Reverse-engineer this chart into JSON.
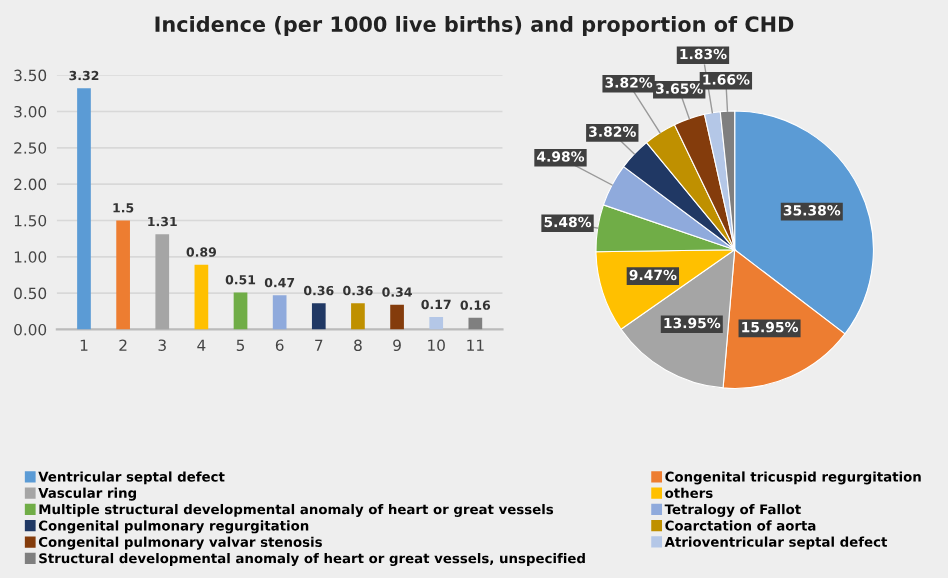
{
  "chart_data": [
    {
      "type": "bar",
      "title": "Incidence (per 1000 live births) and proportion of CHD",
      "categories": [
        "1",
        "2",
        "3",
        "4",
        "5",
        "6",
        "7",
        "8",
        "9",
        "10",
        "11"
      ],
      "values": [
        3.32,
        1.5,
        1.31,
        0.89,
        0.51,
        0.47,
        0.36,
        0.36,
        0.34,
        0.17,
        0.16
      ],
      "colors": [
        "#5b9bd5",
        "#ed7d31",
        "#a5a5a5",
        "#ffc000",
        "#70ad47",
        "#8faadc",
        "#203864",
        "#bf9000",
        "#843c0c",
        "#b4c7e7",
        "#7f7f7f"
      ],
      "ylim": [
        0,
        3.5
      ],
      "yticks": [
        {
          "value": 0,
          "label": "0.00"
        },
        {
          "value": 0.5,
          "label": "0.50"
        },
        {
          "value": 1,
          "label": "1.00"
        },
        {
          "value": 1.5,
          "label": "1.50"
        },
        {
          "value": 2,
          "label": "2.00"
        },
        {
          "value": 2.5,
          "label": "2.50"
        },
        {
          "value": 3,
          "label": "3.00"
        },
        {
          "value": 3.5,
          "label": "3.50"
        }
      ],
      "grid": "y",
      "data_labels": true
    },
    {
      "type": "pie",
      "categories": [
        "Ventricular septal defect",
        "Congenital tricuspid regurgitation",
        "Vascular ring",
        "others",
        "Multiple structural developmental anomaly of heart or great vessels",
        "Tetralogy of Fallot",
        "Congenital pulmonary regurgitation",
        "Coarctation of aorta",
        "Congenital pulmonary valvar stenosis",
        "Atrioventricular septal defect",
        "Structural developmental anomaly of heart or great vessels, unspecified"
      ],
      "values": [
        35.38,
        15.95,
        13.95,
        9.47,
        5.48,
        4.98,
        3.82,
        3.82,
        3.65,
        1.83,
        1.66
      ],
      "colors": [
        "#5b9bd5",
        "#ed7d31",
        "#a5a5a5",
        "#ffc000",
        "#70ad47",
        "#8faadc",
        "#203864",
        "#bf9000",
        "#843c0c",
        "#b4c7e7",
        "#7f7f7f"
      ],
      "value_labels": [
        "35.38%",
        "15.95%",
        "13.95%",
        "9.47%",
        "5.48%",
        "4.98%",
        "3.82%",
        "3.82%",
        "3.65%",
        "1.83%",
        "1.66%"
      ],
      "legend": "bottom"
    }
  ]
}
